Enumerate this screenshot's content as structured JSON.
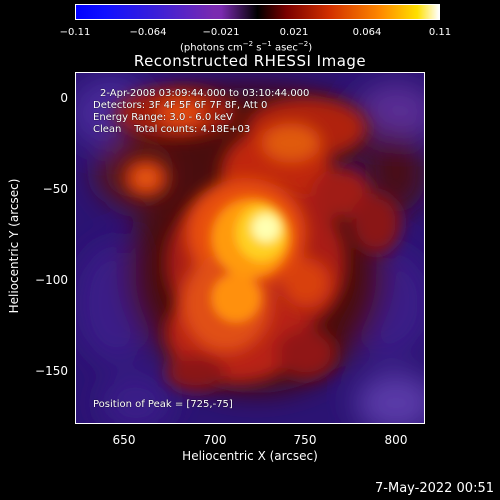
{
  "colorbar": {
    "ticks": [
      "−0.11",
      "−0.064",
      "−0.021",
      "0.021",
      "0.064",
      "0.11"
    ],
    "unit_prefix": "(photons cm",
    "unit_exp1": "−2",
    "unit_mid1": " s",
    "unit_exp2": "−1",
    "unit_mid2": " asec",
    "unit_exp3": "−2",
    "unit_suffix": ")"
  },
  "title": "Reconstructed RHESSI Image",
  "info": {
    "time_range": "2-Apr-2008 03:09:44.000 to 03:10:44.000",
    "detectors": "Detectors: 3F 4F 5F 6F 7F 8F, Att 0",
    "energy": "Energy Range: 3.0 - 6.0 keV",
    "method": "Clean    Total counts: 4.18E+03",
    "peak": "Position of Peak = [725,-75]"
  },
  "axes": {
    "xlabel": "Heliocentric X (arcsec)",
    "ylabel": "Heliocentric Y (arcsec)",
    "xticks": [
      "650",
      "700",
      "750",
      "800"
    ],
    "yticks": [
      "0",
      "−50",
      "−100",
      "−150"
    ],
    "xlim": [
      622,
      815
    ],
    "ylim": [
      -181,
      13
    ]
  },
  "timestamp": "7-May-2022 00:51"
}
